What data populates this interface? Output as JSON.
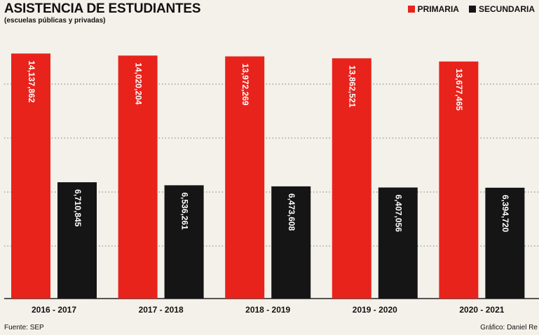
{
  "header": {
    "title": "ASISTENCIA DE ESTUDIANTES",
    "subtitle": "(escuelas públicas y privadas)"
  },
  "legend": {
    "items": [
      {
        "label": "PRIMARIA",
        "color": "#e8231c"
      },
      {
        "label": "SECUNDARIA",
        "color": "#151515"
      }
    ]
  },
  "footer": {
    "source": "Fuente: SEP",
    "credit": "Gráfico: Daniel Re"
  },
  "chart_data": {
    "type": "bar",
    "title": "ASISTENCIA DE ESTUDIANTES",
    "subtitle": "(escuelas públicas y privadas)",
    "categories": [
      "2016 - 2017",
      "2017 - 2018",
      "2018 - 2019",
      "2019 - 2020",
      "2020 - 2021"
    ],
    "series": [
      {
        "name": "PRIMARIA",
        "color": "#e8231c",
        "values": [
          14137862,
          14020204,
          13972269,
          13862521,
          13677465
        ],
        "labels": [
          "14,137,862",
          "14,020,204",
          "13,972,269",
          "13,862,521",
          "13,677,465"
        ]
      },
      {
        "name": "SECUNDARIA",
        "color": "#151515",
        "values": [
          6710845,
          6536261,
          6473608,
          6407056,
          6394720
        ],
        "labels": [
          "6,710,845",
          "6,536,261",
          "6,473,608",
          "6,407,056",
          "6,394,720"
        ]
      }
    ],
    "ylim": [
      0,
      14800000
    ],
    "grid": true,
    "legend_position": "top-right",
    "label_orientation": "vertical"
  }
}
